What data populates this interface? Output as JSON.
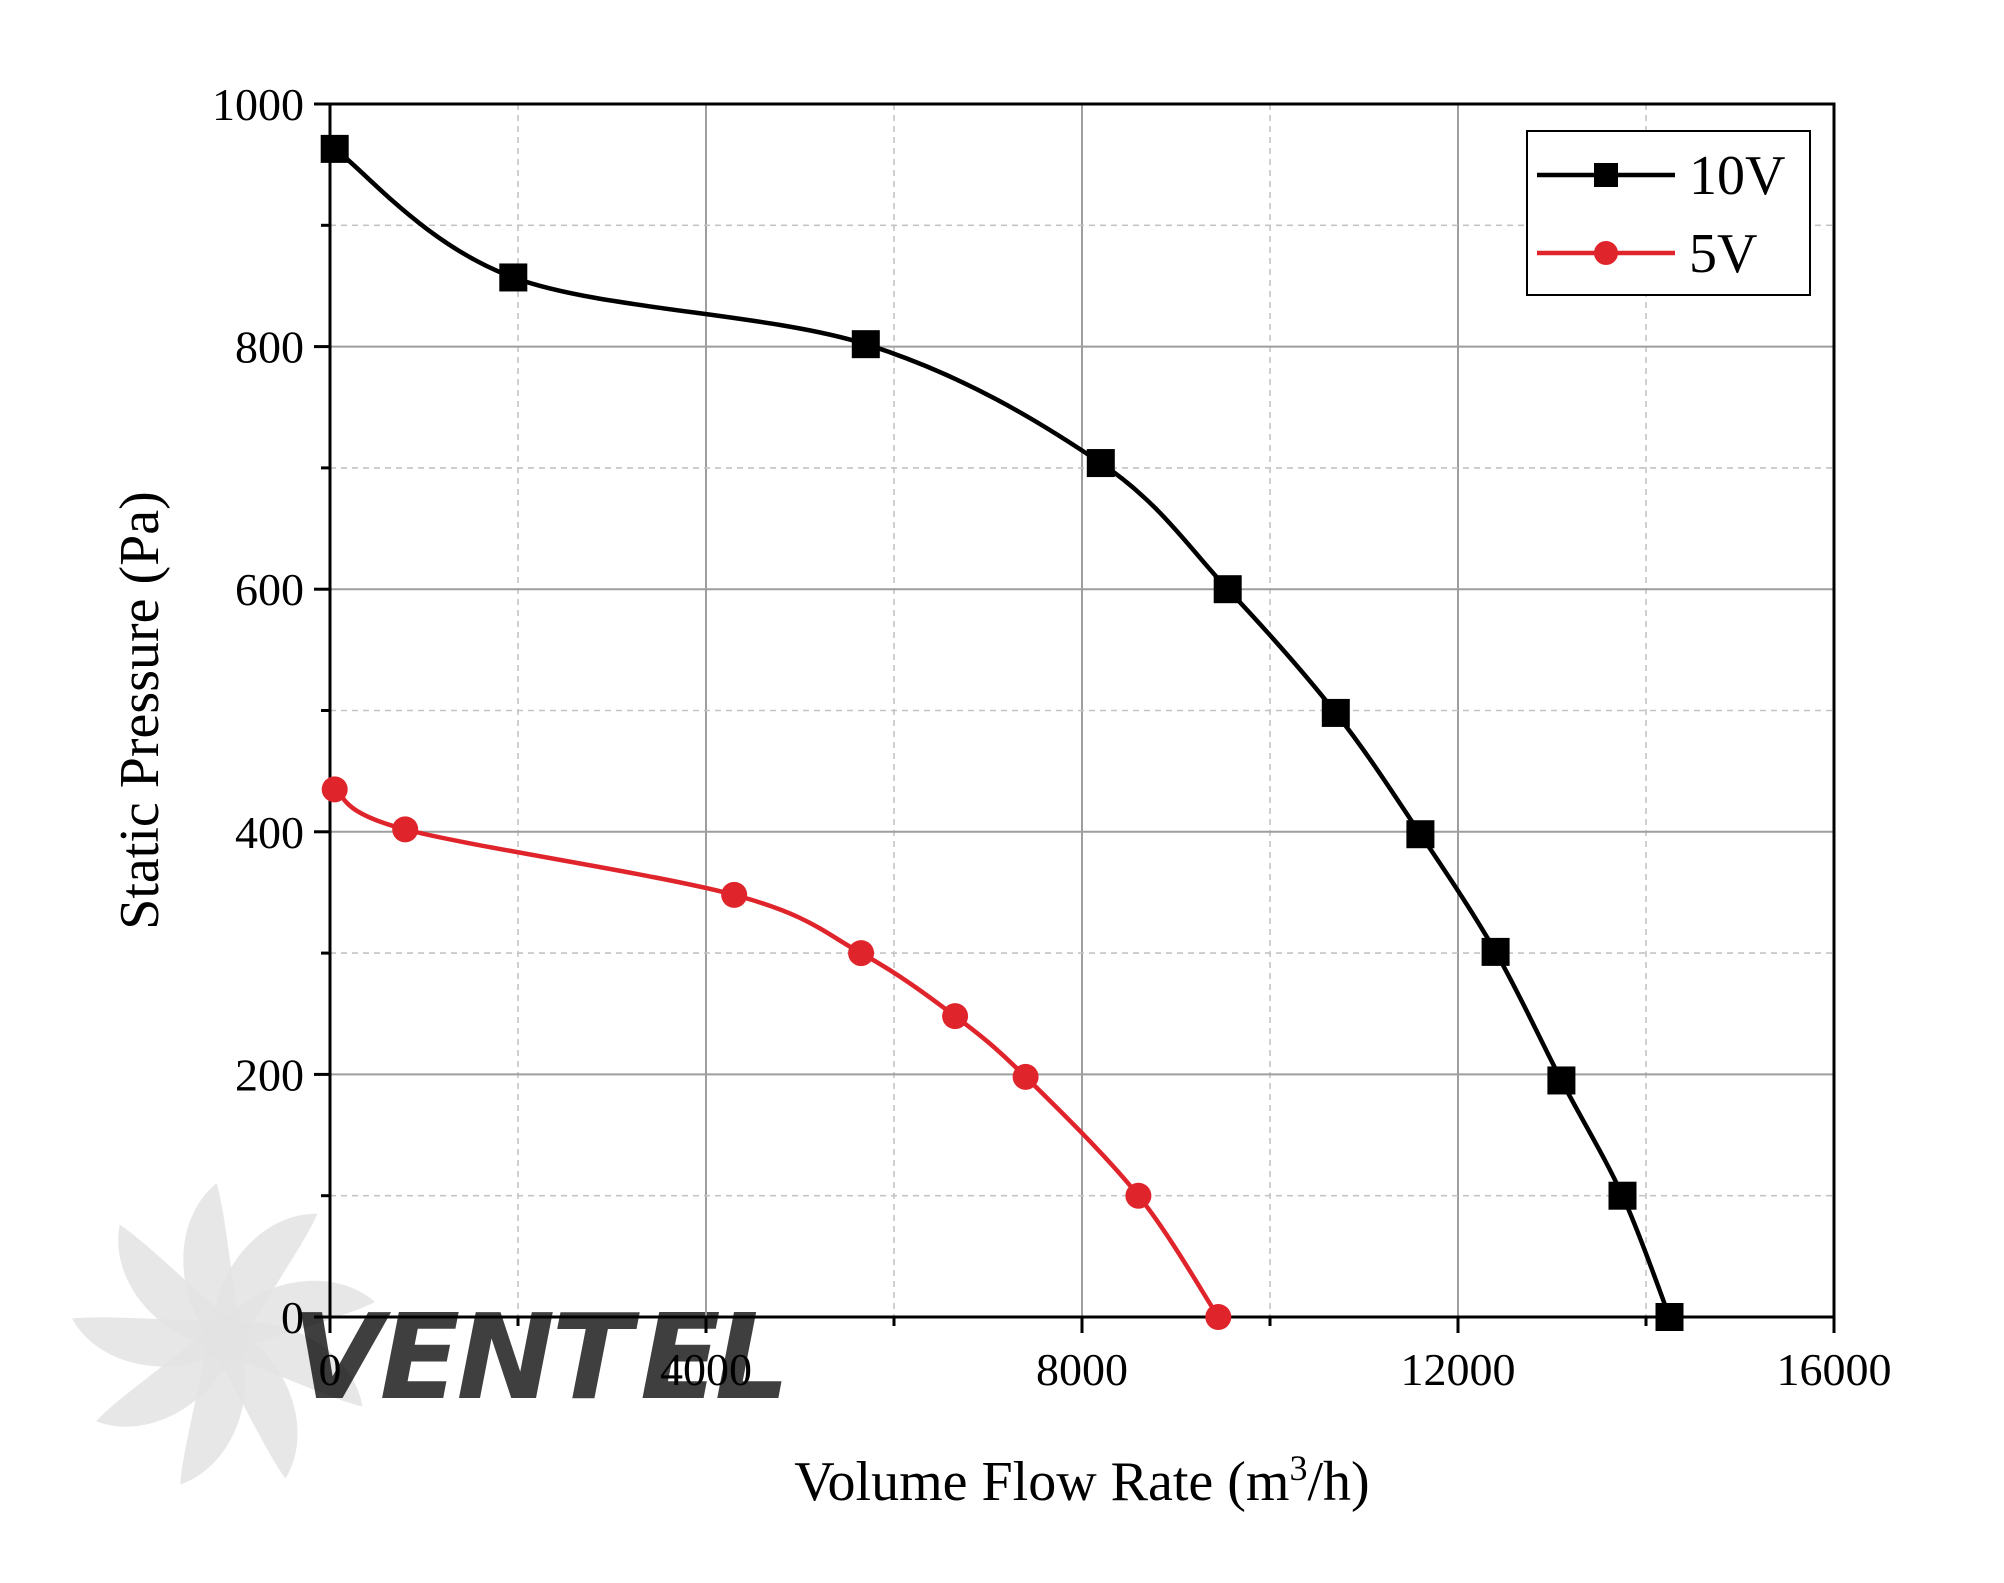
{
  "chart_data": {
    "type": "line",
    "xlabel": "Volume Flow Rate (m",
    "xlabel_sup": "3",
    "xlabel_tail": "/h)",
    "ylabel": "Static Pressure (Pa)",
    "xlim": [
      0,
      16000
    ],
    "ylim": [
      0,
      1000
    ],
    "xticks": [
      0,
      4000,
      8000,
      12000,
      16000
    ],
    "yticks": [
      0,
      200,
      400,
      600,
      800,
      1000
    ],
    "xtick_labels": [
      "0",
      "4000",
      "8000",
      "12000",
      "16000"
    ],
    "ytick_labels": [
      "0",
      "200",
      "400",
      "600",
      "800",
      "1000"
    ],
    "grid": true,
    "legend_position": "top-right",
    "series": [
      {
        "name": "10V",
        "color": "#000000",
        "marker": "square",
        "x": [
          50,
          1950,
          5700,
          8200,
          9550,
          10700,
          11600,
          12400,
          13100,
          13750,
          14250
        ],
        "y": [
          963,
          857,
          802,
          704,
          600,
          498,
          398,
          301,
          195,
          100,
          0
        ]
      },
      {
        "name": "5V",
        "color": "#e0242b",
        "marker": "circle",
        "x": [
          50,
          800,
          4300,
          5650,
          6650,
          7400,
          8600,
          9450
        ],
        "y": [
          435,
          402,
          348,
          300,
          248,
          198,
          100,
          0
        ]
      }
    ]
  },
  "watermark": {
    "text_left": "VENT",
    "text_right": "EL",
    "color_left": "#bdbdbd",
    "color_right": "#b9d3ea",
    "fan_icon": "fan-icon"
  }
}
